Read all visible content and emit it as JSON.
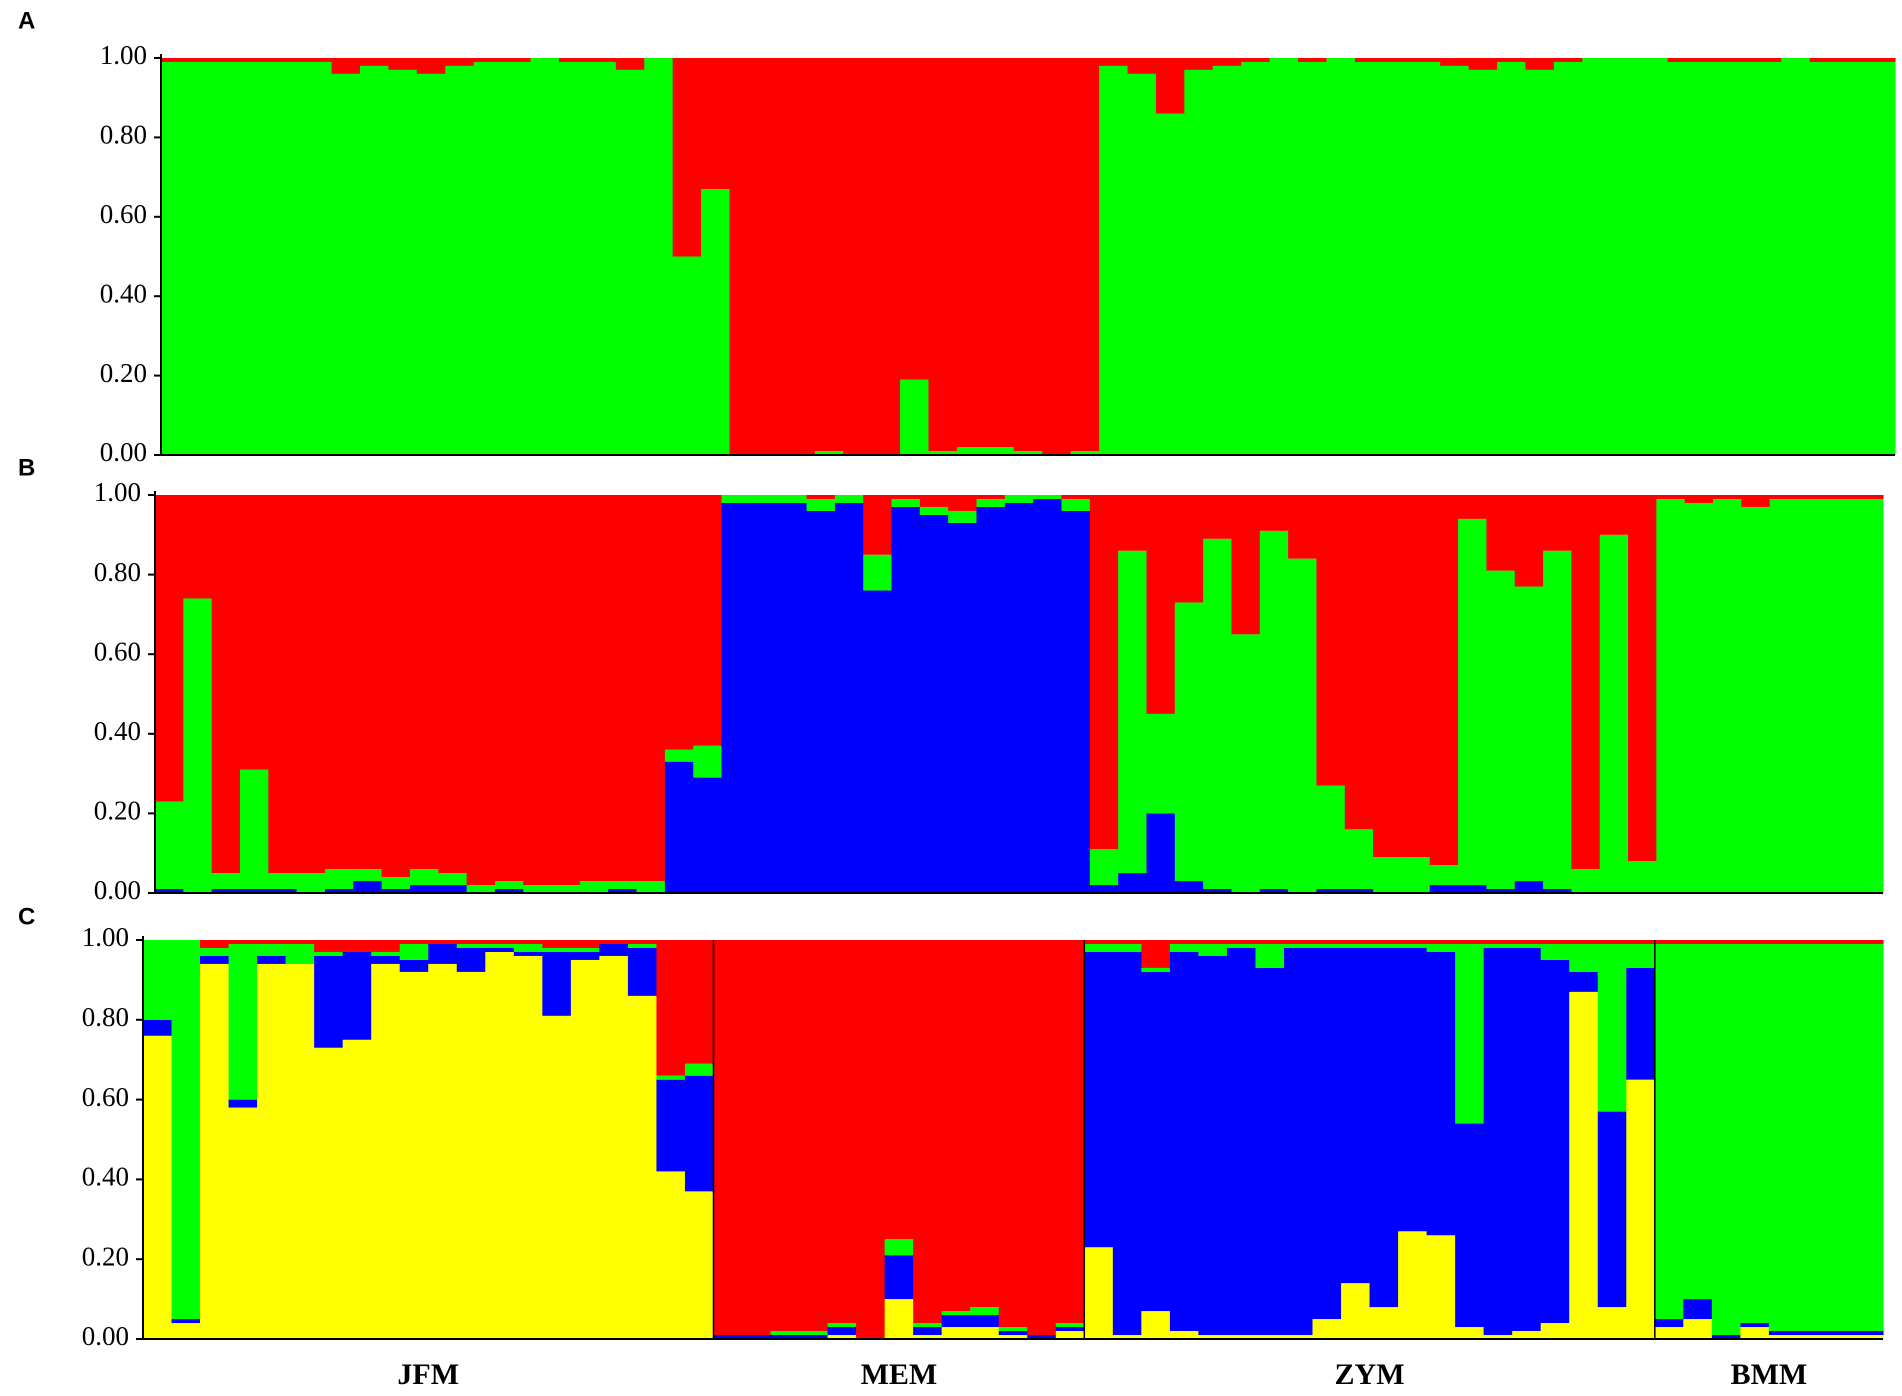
{
  "groups": [
    {
      "name": "JFM",
      "size": 20
    },
    {
      "name": "MEM",
      "size": 13
    },
    {
      "name": "ZYM",
      "size": 20
    },
    {
      "name": "BMM",
      "size": 8
    }
  ],
  "chart_data": [
    {
      "type": "bar",
      "stacked": true,
      "label": "A",
      "ylim": [
        0,
        1
      ],
      "yticks": [
        {
          "value": 0,
          "label": "0.00"
        },
        {
          "value": 0.2,
          "label": "0.20"
        },
        {
          "value": 0.4,
          "label": "0.40"
        },
        {
          "value": 0.6,
          "label": "0.60"
        },
        {
          "value": 0.8,
          "label": "0.80"
        },
        {
          "value": 1,
          "label": "1.00"
        }
      ],
      "series": [
        {
          "color": "#00ff00",
          "values": [
            0.99,
            0.99,
            0.99,
            0.99,
            0.99,
            0.99,
            0.96,
            0.98,
            0.97,
            0.96,
            0.98,
            0.99,
            0.99,
            1.0,
            0.99,
            0.99,
            0.97,
            1.0,
            0.5,
            0.67,
            0,
            0,
            0,
            0.01,
            0,
            0,
            0.19,
            0.01,
            0.02,
            0.02,
            0.01,
            0,
            0.01,
            0.98,
            0.96,
            0.86,
            0.97,
            0.98,
            0.99,
            1.0,
            0.99,
            1.0,
            0.99,
            0.99,
            0.99,
            0.98,
            0.97,
            0.99,
            0.97,
            0.99,
            1.0,
            1.0,
            1.0,
            0.99,
            0.99,
            0.99,
            0.99,
            1.0,
            0.99,
            0.99,
            0.99
          ]
        },
        {
          "color": "#ff0000",
          "values": [
            0.01,
            0.01,
            0.01,
            0.01,
            0.01,
            0.01,
            0.04,
            0.02,
            0.03,
            0.04,
            0.02,
            0.01,
            0.01,
            0,
            0.01,
            0.01,
            0.03,
            0,
            0.5,
            0.33,
            1,
            1,
            1,
            0.99,
            1,
            1,
            0.81,
            0.99,
            0.98,
            0.98,
            0.99,
            1,
            0.99,
            0.02,
            0.04,
            0.14,
            0.03,
            0.02,
            0.01,
            0,
            0.01,
            0,
            0.01,
            0.01,
            0.01,
            0.02,
            0.03,
            0.01,
            0.03,
            0.01,
            0,
            0,
            0,
            0.01,
            0.01,
            0.01,
            0.01,
            0,
            0.01,
            0.01,
            0.01
          ]
        }
      ]
    },
    {
      "type": "bar",
      "stacked": true,
      "label": "B",
      "ylim": [
        0,
        1
      ],
      "yticks": [
        {
          "value": 0,
          "label": "0.00"
        },
        {
          "value": 0.2,
          "label": "0.20"
        },
        {
          "value": 0.4,
          "label": "0.40"
        },
        {
          "value": 0.6,
          "label": "0.60"
        },
        {
          "value": 0.8,
          "label": "0.80"
        },
        {
          "value": 1,
          "label": "1.00"
        }
      ],
      "series": [
        {
          "color": "#0000ff",
          "values": [
            0.01,
            0,
            0.01,
            0.01,
            0.01,
            0,
            0.01,
            0.03,
            0.01,
            0.02,
            0.02,
            0,
            0.01,
            0,
            0,
            0,
            0.01,
            0,
            0.33,
            0.29,
            0.98,
            0.98,
            0.98,
            0.96,
            0.98,
            0.76,
            0.97,
            0.95,
            0.93,
            0.97,
            0.98,
            0.99,
            0.96,
            0.02,
            0.05,
            0.2,
            0.03,
            0.01,
            0,
            0.01,
            0,
            0.01,
            0.01,
            0,
            0,
            0.02,
            0.02,
            0.01,
            0.03,
            0.01,
            0,
            0,
            0,
            0,
            0,
            0,
            0,
            0,
            0,
            0,
            0
          ]
        },
        {
          "color": "#00ff00",
          "values": [
            0.22,
            0.74,
            0.04,
            0.3,
            0.04,
            0.05,
            0.05,
            0.03,
            0.03,
            0.04,
            0.03,
            0.02,
            0.02,
            0.02,
            0.02,
            0.03,
            0.02,
            0.03,
            0.03,
            0.08,
            0.02,
            0.02,
            0.02,
            0.03,
            0.02,
            0.09,
            0.02,
            0.02,
            0.03,
            0.02,
            0.02,
            0.01,
            0.03,
            0.09,
            0.81,
            0.25,
            0.7,
            0.88,
            0.65,
            0.9,
            0.84,
            0.26,
            0.15,
            0.09,
            0.09,
            0.05,
            0.92,
            0.8,
            0.74,
            0.85,
            0.06,
            0.9,
            0.08,
            0.99,
            0.98,
            0.99,
            0.97,
            0.99,
            0.99,
            0.99,
            0.99
          ]
        },
        {
          "color": "#ff0000",
          "values": [
            0.77,
            0.26,
            0.95,
            0.69,
            0.95,
            0.95,
            0.94,
            0.94,
            0.96,
            0.94,
            0.95,
            0.98,
            0.97,
            0.98,
            0.98,
            0.97,
            0.97,
            0.97,
            0.64,
            0.63,
            0,
            0,
            0,
            0.01,
            0,
            0.15,
            0.01,
            0.03,
            0.04,
            0.01,
            0,
            0,
            0.01,
            0.89,
            0.14,
            0.55,
            0.27,
            0.11,
            0.35,
            0.09,
            0.16,
            0.73,
            0.84,
            0.91,
            0.91,
            0.93,
            0.06,
            0.19,
            0.23,
            0.14,
            0.94,
            0.1,
            0.92,
            0.01,
            0.02,
            0.01,
            0.03,
            0.01,
            0.01,
            0.01,
            0.01
          ]
        }
      ]
    },
    {
      "type": "bar",
      "stacked": true,
      "label": "C",
      "group_dividers": true,
      "ylim": [
        0,
        1
      ],
      "yticks": [
        {
          "value": 0,
          "label": "0.00"
        },
        {
          "value": 0.2,
          "label": "0.20"
        },
        {
          "value": 0.4,
          "label": "0.40"
        },
        {
          "value": 0.6,
          "label": "0.60"
        },
        {
          "value": 0.8,
          "label": "0.80"
        },
        {
          "value": 1,
          "label": "1.00"
        }
      ],
      "series": [
        {
          "color": "#ffff00",
          "values": [
            0.76,
            0.04,
            0.94,
            0.58,
            0.94,
            0.94,
            0.73,
            0.75,
            0.94,
            0.92,
            0.94,
            0.92,
            0.97,
            0.96,
            0.81,
            0.95,
            0.96,
            0.86,
            0.42,
            0.37,
            0,
            0,
            0,
            0,
            0.01,
            0,
            0.1,
            0.01,
            0.03,
            0.03,
            0.01,
            0,
            0.02,
            0.23,
            0.01,
            0.07,
            0.02,
            0.01,
            0.01,
            0.01,
            0.01,
            0.05,
            0.14,
            0.08,
            0.27,
            0.26,
            0.03,
            0.01,
            0.02,
            0.04,
            0.87,
            0.08,
            0.65,
            0.03,
            0.05,
            0,
            0.03,
            0.01,
            0.01,
            0.01,
            0.01
          ]
        },
        {
          "color": "#0000ff",
          "values": [
            0.04,
            0.01,
            0.02,
            0.02,
            0.02,
            0,
            0.23,
            0.22,
            0.02,
            0.03,
            0.05,
            0.06,
            0.01,
            0.01,
            0.16,
            0.02,
            0.03,
            0.12,
            0.23,
            0.29,
            0.01,
            0.01,
            0.01,
            0.01,
            0.02,
            0,
            0.11,
            0.02,
            0.03,
            0.03,
            0.01,
            0.01,
            0.01,
            0.74,
            0.96,
            0.85,
            0.95,
            0.95,
            0.97,
            0.92,
            0.97,
            0.93,
            0.84,
            0.9,
            0.71,
            0.71,
            0.51,
            0.97,
            0.96,
            0.91,
            0.05,
            0.49,
            0.28,
            0.02,
            0.05,
            0.01,
            0.01,
            0.01,
            0.01,
            0.01,
            0.01
          ]
        },
        {
          "color": "#00ff00",
          "values": [
            0.2,
            0.95,
            0.02,
            0.39,
            0.03,
            0.05,
            0.01,
            0,
            0.01,
            0.04,
            0,
            0.01,
            0.01,
            0.02,
            0.01,
            0.01,
            0,
            0.01,
            0.01,
            0.03,
            0,
            0,
            0.01,
            0.01,
            0.01,
            0,
            0.04,
            0.01,
            0.01,
            0.02,
            0.01,
            0,
            0.01,
            0.02,
            0.02,
            0.01,
            0.02,
            0.03,
            0.01,
            0.06,
            0.01,
            0.01,
            0.01,
            0.01,
            0.01,
            0.02,
            0.45,
            0.01,
            0.01,
            0.04,
            0.07,
            0.42,
            0.06,
            0.94,
            0.89,
            0.98,
            0.95,
            0.97,
            0.97,
            0.97,
            0.97
          ]
        },
        {
          "color": "#ff0000",
          "values": [
            0,
            0,
            0.02,
            0.01,
            0.01,
            0.01,
            0.03,
            0.03,
            0.03,
            0.01,
            0.01,
            0.01,
            0.01,
            0.01,
            0.02,
            0.02,
            0.01,
            0.01,
            0.34,
            0.31,
            0.99,
            0.99,
            0.98,
            0.98,
            0.96,
            1.0,
            0.75,
            0.96,
            0.93,
            0.92,
            0.97,
            0.99,
            0.96,
            0.01,
            0.01,
            0.07,
            0.01,
            0.01,
            0.01,
            0.01,
            0.01,
            0.01,
            0.01,
            0.01,
            0.01,
            0.01,
            0.01,
            0.01,
            0.01,
            0.01,
            0.01,
            0.01,
            0.01,
            0.01,
            0.01,
            0.01,
            0.01,
            0.01,
            0.01,
            0.01,
            0.01
          ]
        }
      ]
    }
  ]
}
